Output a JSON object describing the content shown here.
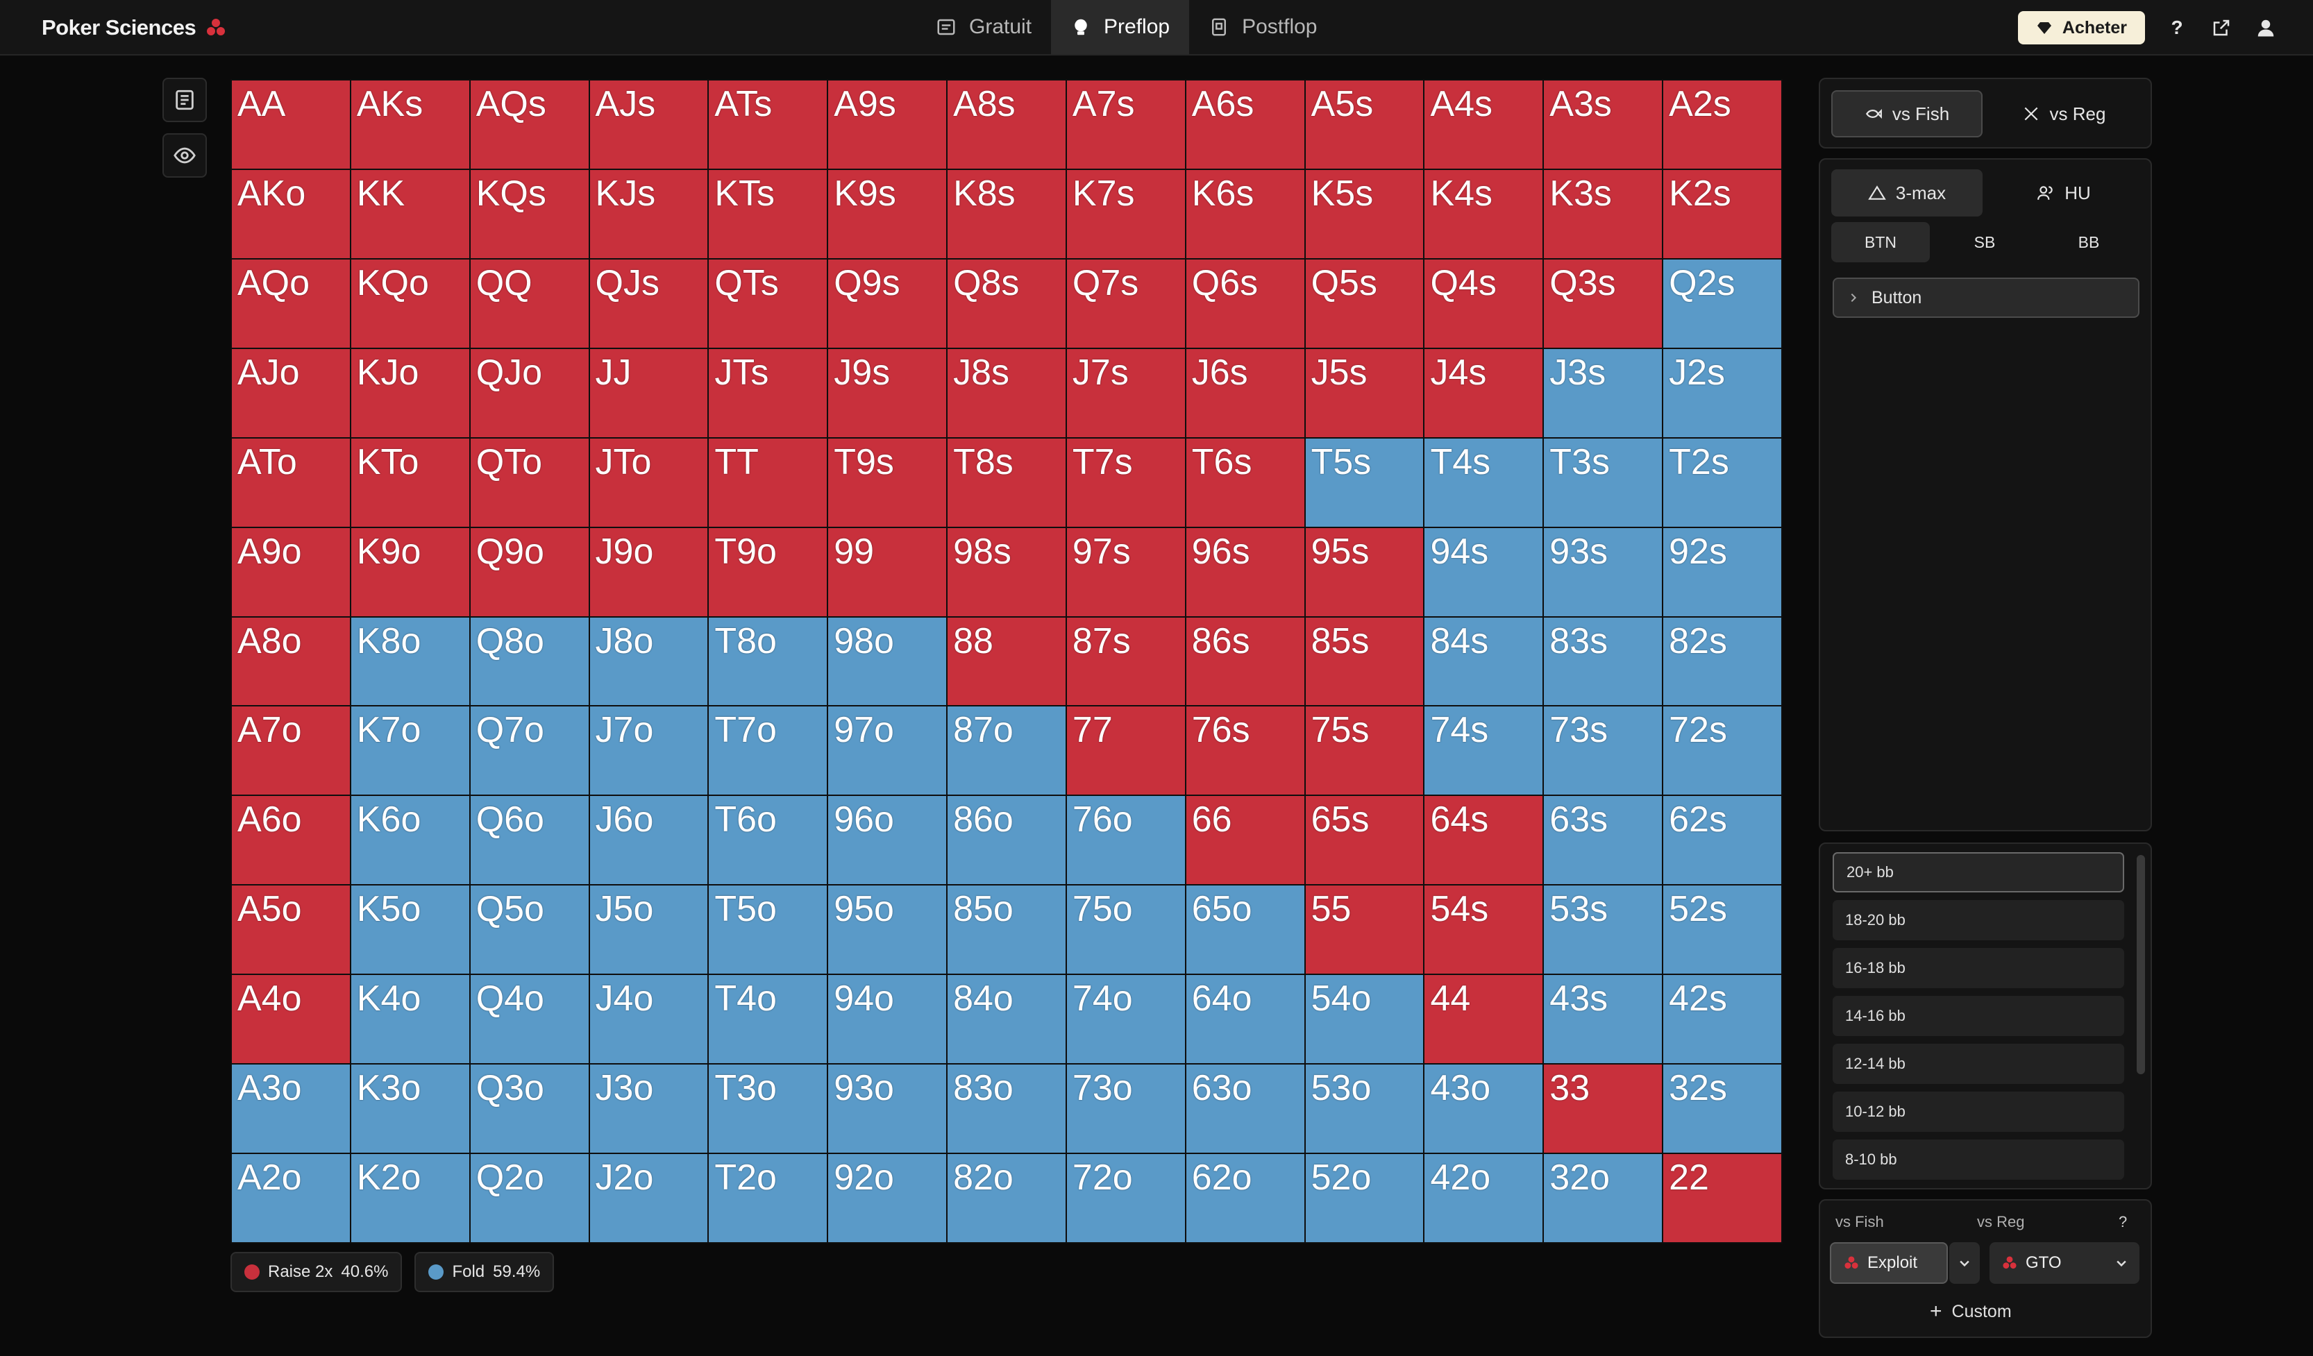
{
  "app": {
    "brand": "Poker Sciences"
  },
  "nav": {
    "tabs": [
      {
        "label": "Gratuit",
        "icon": "chart-icon"
      },
      {
        "label": "Preflop",
        "icon": "chip-icon"
      },
      {
        "label": "Postflop",
        "icon": "cards-icon"
      }
    ],
    "active": "Preflop"
  },
  "header": {
    "buy_label": "Acheter",
    "help_label": "?"
  },
  "opponent": {
    "fish_label": "vs Fish",
    "reg_label": "vs Reg",
    "active": "vs Fish"
  },
  "format": {
    "three_max_label": "3-max",
    "hu_label": "HU",
    "active": "3-max"
  },
  "positions": {
    "items": [
      "BTN",
      "SB",
      "BB"
    ],
    "active": "BTN"
  },
  "spot": {
    "label": "Button"
  },
  "stacks": {
    "items": [
      "20+ bb",
      "18-20 bb",
      "16-18 bb",
      "14-16 bb",
      "12-14 bb",
      "10-12 bb",
      "8-10 bb"
    ],
    "active": "20+ bb"
  },
  "strategy": {
    "fish_label": "vs Fish",
    "reg_label": "vs Reg",
    "help_label": "?",
    "fish_value": "Exploit",
    "reg_value": "GTO",
    "custom_label": "Custom"
  },
  "legend": {
    "raise_label": "Raise 2x",
    "raise_pct": "40.6%",
    "fold_label": "Fold",
    "fold_pct": "59.4%"
  },
  "colors": {
    "raise": "#c8303c",
    "fold": "#5a9ac8",
    "brand_suit": "#d8313c"
  },
  "grid": {
    "rows": [
      [
        "AA",
        "AKs",
        "AQs",
        "AJs",
        "ATs",
        "A9s",
        "A8s",
        "A7s",
        "A6s",
        "A5s",
        "A4s",
        "A3s",
        "A2s"
      ],
      [
        "AKo",
        "KK",
        "KQs",
        "KJs",
        "KTs",
        "K9s",
        "K8s",
        "K7s",
        "K6s",
        "K5s",
        "K4s",
        "K3s",
        "K2s"
      ],
      [
        "AQo",
        "KQo",
        "QQ",
        "QJs",
        "QTs",
        "Q9s",
        "Q8s",
        "Q7s",
        "Q6s",
        "Q5s",
        "Q4s",
        "Q3s",
        "Q2s"
      ],
      [
        "AJo",
        "KJo",
        "QJo",
        "JJ",
        "JTs",
        "J9s",
        "J8s",
        "J7s",
        "J6s",
        "J5s",
        "J4s",
        "J3s",
        "J2s"
      ],
      [
        "ATo",
        "KTo",
        "QTo",
        "JTo",
        "TT",
        "T9s",
        "T8s",
        "T7s",
        "T6s",
        "T5s",
        "T4s",
        "T3s",
        "T2s"
      ],
      [
        "A9o",
        "K9o",
        "Q9o",
        "J9o",
        "T9o",
        "99",
        "98s",
        "97s",
        "96s",
        "95s",
        "94s",
        "93s",
        "92s"
      ],
      [
        "A8o",
        "K8o",
        "Q8o",
        "J8o",
        "T8o",
        "98o",
        "88",
        "87s",
        "86s",
        "85s",
        "84s",
        "83s",
        "82s"
      ],
      [
        "A7o",
        "K7o",
        "Q7o",
        "J7o",
        "T7o",
        "97o",
        "87o",
        "77",
        "76s",
        "75s",
        "74s",
        "73s",
        "72s"
      ],
      [
        "A6o",
        "K6o",
        "Q6o",
        "J6o",
        "T6o",
        "96o",
        "86o",
        "76o",
        "66",
        "65s",
        "64s",
        "63s",
        "62s"
      ],
      [
        "A5o",
        "K5o",
        "Q5o",
        "J5o",
        "T5o",
        "95o",
        "85o",
        "75o",
        "65o",
        "55",
        "54s",
        "53s",
        "52s"
      ],
      [
        "A4o",
        "K4o",
        "Q4o",
        "J4o",
        "T4o",
        "94o",
        "84o",
        "74o",
        "64o",
        "54o",
        "44",
        "43s",
        "42s"
      ],
      [
        "A3o",
        "K3o",
        "Q3o",
        "J3o",
        "T3o",
        "93o",
        "83o",
        "73o",
        "63o",
        "53o",
        "43o",
        "33",
        "32s"
      ],
      [
        "A2o",
        "K2o",
        "Q2o",
        "J2o",
        "T2o",
        "92o",
        "82o",
        "72o",
        "62o",
        "52o",
        "42o",
        "32o",
        "22"
      ]
    ],
    "actions": [
      "RRRRRRRRRRRRR",
      "RRRRRRRRRRRRR",
      "RRRRRRRRRRRRF",
      "RRRRRRRRRRRFF",
      "RRRRRRRRRFFFF",
      "RRRRRRRRRRFFF",
      "RFFFFFRRRRFFF",
      "RFFFFFFRRRFFF",
      "RFFFFFFFRRRFF",
      "RFFFFFFFFRRFF",
      "RFFFFFFFFFRFF",
      "FFFFFFFFFFFRF",
      "FFFFFFFFFFFFR"
    ]
  }
}
